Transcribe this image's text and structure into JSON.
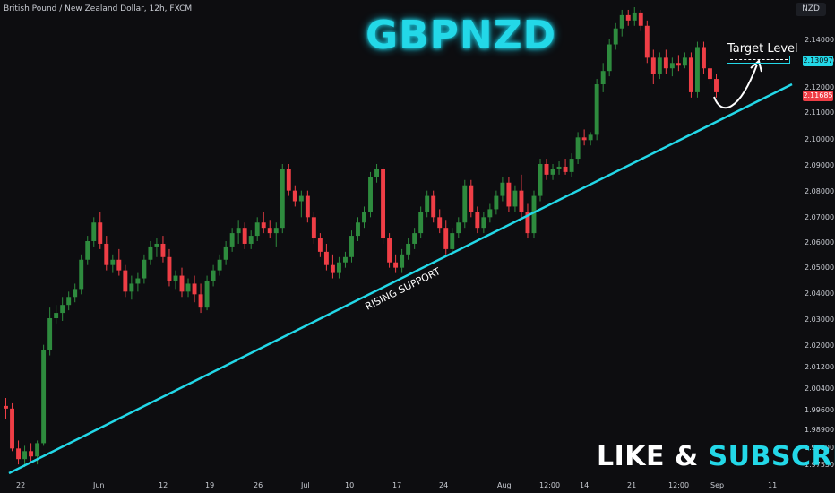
{
  "header": {
    "symbol_info": "British Pound / New Zealand Dollar, 12h, FXCM",
    "currency": "NZD"
  },
  "overlay": {
    "title": "GBPNZD",
    "support_label": "RISING SUPPORT",
    "target_label": "Target Level",
    "cta_main": "LIKE & ",
    "cta_accent": "SUBSCRIBE"
  },
  "price_badges": {
    "target": "2.13097",
    "last": "2.11685"
  },
  "colors": {
    "background": "#0d0d10",
    "up": "#2e8b3e",
    "down": "#ef3e46",
    "accent": "#23d8e8",
    "text": "#c9ccd3"
  },
  "chart_data": {
    "type": "candlestick",
    "title": "GBPNZD",
    "y_axis": {
      "position": "right",
      "ticks": [
        "2.14000",
        "2.13000",
        "2.12000",
        "2.11000",
        "2.10000",
        "2.09000",
        "2.08000",
        "2.07000",
        "2.06000",
        "2.05000",
        "2.04000",
        "2.03000",
        "2.02000",
        "2.01200",
        "2.00400",
        "1.99600",
        "1.98900",
        "1.98200",
        "1.97550"
      ],
      "range": [
        1.973,
        2.149
      ]
    },
    "x_axis": {
      "ticks": [
        "22",
        "Jun",
        "12",
        "19",
        "26",
        "Jul",
        "10",
        "17",
        "24",
        "Aug",
        "12:00",
        "14",
        "21",
        "12:00",
        "Sep",
        "11"
      ]
    },
    "candles": [
      {
        "o": 1.999,
        "h": 2.002,
        "l": 1.994,
        "c": 1.998
      },
      {
        "o": 1.998,
        "h": 2.0,
        "l": 1.982,
        "c": 1.983
      },
      {
        "o": 1.983,
        "h": 1.986,
        "l": 1.977,
        "c": 1.979
      },
      {
        "o": 1.979,
        "h": 1.984,
        "l": 1.976,
        "c": 1.982
      },
      {
        "o": 1.982,
        "h": 1.985,
        "l": 1.978,
        "c": 1.98
      },
      {
        "o": 1.98,
        "h": 1.986,
        "l": 1.977,
        "c": 1.985
      },
      {
        "o": 1.985,
        "h": 2.022,
        "l": 1.984,
        "c": 2.02
      },
      {
        "o": 2.02,
        "h": 2.036,
        "l": 2.018,
        "c": 2.032
      },
      {
        "o": 2.032,
        "h": 2.037,
        "l": 2.03,
        "c": 2.034
      },
      {
        "o": 2.034,
        "h": 2.04,
        "l": 2.031,
        "c": 2.037
      },
      {
        "o": 2.037,
        "h": 2.042,
        "l": 2.035,
        "c": 2.04
      },
      {
        "o": 2.04,
        "h": 2.045,
        "l": 2.038,
        "c": 2.043
      },
      {
        "o": 2.043,
        "h": 2.056,
        "l": 2.041,
        "c": 2.054
      },
      {
        "o": 2.054,
        "h": 2.063,
        "l": 2.052,
        "c": 2.061
      },
      {
        "o": 2.061,
        "h": 2.07,
        "l": 2.059,
        "c": 2.068
      },
      {
        "o": 2.068,
        "h": 2.072,
        "l": 2.058,
        "c": 2.06
      },
      {
        "o": 2.06,
        "h": 2.063,
        "l": 2.05,
        "c": 2.052
      },
      {
        "o": 2.052,
        "h": 2.056,
        "l": 2.049,
        "c": 2.054
      },
      {
        "o": 2.054,
        "h": 2.058,
        "l": 2.048,
        "c": 2.05
      },
      {
        "o": 2.05,
        "h": 2.052,
        "l": 2.04,
        "c": 2.042
      },
      {
        "o": 2.042,
        "h": 2.048,
        "l": 2.039,
        "c": 2.045
      },
      {
        "o": 2.045,
        "h": 2.049,
        "l": 2.042,
        "c": 2.047
      },
      {
        "o": 2.047,
        "h": 2.056,
        "l": 2.045,
        "c": 2.054
      },
      {
        "o": 2.054,
        "h": 2.061,
        "l": 2.052,
        "c": 2.059
      },
      {
        "o": 2.059,
        "h": 2.062,
        "l": 2.055,
        "c": 2.06
      },
      {
        "o": 2.06,
        "h": 2.063,
        "l": 2.053,
        "c": 2.055
      },
      {
        "o": 2.055,
        "h": 2.058,
        "l": 2.044,
        "c": 2.046
      },
      {
        "o": 2.046,
        "h": 2.05,
        "l": 2.043,
        "c": 2.048
      },
      {
        "o": 2.048,
        "h": 2.051,
        "l": 2.04,
        "c": 2.042
      },
      {
        "o": 2.042,
        "h": 2.047,
        "l": 2.04,
        "c": 2.045
      },
      {
        "o": 2.045,
        "h": 2.048,
        "l": 2.038,
        "c": 2.041
      },
      {
        "o": 2.041,
        "h": 2.045,
        "l": 2.034,
        "c": 2.036
      },
      {
        "o": 2.036,
        "h": 2.048,
        "l": 2.035,
        "c": 2.046
      },
      {
        "o": 2.046,
        "h": 2.052,
        "l": 2.044,
        "c": 2.05
      },
      {
        "o": 2.05,
        "h": 2.056,
        "l": 2.048,
        "c": 2.054
      },
      {
        "o": 2.054,
        "h": 2.061,
        "l": 2.052,
        "c": 2.059
      },
      {
        "o": 2.059,
        "h": 2.066,
        "l": 2.057,
        "c": 2.064
      },
      {
        "o": 2.064,
        "h": 2.069,
        "l": 2.06,
        "c": 2.066
      },
      {
        "o": 2.066,
        "h": 2.068,
        "l": 2.058,
        "c": 2.06
      },
      {
        "o": 2.06,
        "h": 2.065,
        "l": 2.058,
        "c": 2.063
      },
      {
        "o": 2.063,
        "h": 2.07,
        "l": 2.061,
        "c": 2.068
      },
      {
        "o": 2.068,
        "h": 2.072,
        "l": 2.064,
        "c": 2.066
      },
      {
        "o": 2.066,
        "h": 2.069,
        "l": 2.062,
        "c": 2.064
      },
      {
        "o": 2.064,
        "h": 2.068,
        "l": 2.059,
        "c": 2.066
      },
      {
        "o": 2.066,
        "h": 2.09,
        "l": 2.064,
        "c": 2.088
      },
      {
        "o": 2.088,
        "h": 2.09,
        "l": 2.078,
        "c": 2.08
      },
      {
        "o": 2.08,
        "h": 2.082,
        "l": 2.074,
        "c": 2.076
      },
      {
        "o": 2.076,
        "h": 2.08,
        "l": 2.07,
        "c": 2.078
      },
      {
        "o": 2.078,
        "h": 2.08,
        "l": 2.068,
        "c": 2.07
      },
      {
        "o": 2.07,
        "h": 2.072,
        "l": 2.06,
        "c": 2.062
      },
      {
        "o": 2.062,
        "h": 2.064,
        "l": 2.055,
        "c": 2.057
      },
      {
        "o": 2.057,
        "h": 2.06,
        "l": 2.05,
        "c": 2.052
      },
      {
        "o": 2.052,
        "h": 2.056,
        "l": 2.047,
        "c": 2.049
      },
      {
        "o": 2.049,
        "h": 2.055,
        "l": 2.047,
        "c": 2.053
      },
      {
        "o": 2.053,
        "h": 2.057,
        "l": 2.051,
        "c": 2.055
      },
      {
        "o": 2.055,
        "h": 2.065,
        "l": 2.053,
        "c": 2.063
      },
      {
        "o": 2.063,
        "h": 2.07,
        "l": 2.061,
        "c": 2.068
      },
      {
        "o": 2.068,
        "h": 2.074,
        "l": 2.066,
        "c": 2.072
      },
      {
        "o": 2.072,
        "h": 2.087,
        "l": 2.07,
        "c": 2.085
      },
      {
        "o": 2.085,
        "h": 2.09,
        "l": 2.083,
        "c": 2.088
      },
      {
        "o": 2.088,
        "h": 2.089,
        "l": 2.06,
        "c": 2.062
      },
      {
        "o": 2.062,
        "h": 2.064,
        "l": 2.051,
        "c": 2.053
      },
      {
        "o": 2.053,
        "h": 2.056,
        "l": 2.049,
        "c": 2.051
      },
      {
        "o": 2.051,
        "h": 2.058,
        "l": 2.049,
        "c": 2.056
      },
      {
        "o": 2.056,
        "h": 2.062,
        "l": 2.054,
        "c": 2.06
      },
      {
        "o": 2.06,
        "h": 2.066,
        "l": 2.058,
        "c": 2.064
      },
      {
        "o": 2.064,
        "h": 2.074,
        "l": 2.062,
        "c": 2.072
      },
      {
        "o": 2.072,
        "h": 2.08,
        "l": 2.07,
        "c": 2.078
      },
      {
        "o": 2.078,
        "h": 2.08,
        "l": 2.068,
        "c": 2.07
      },
      {
        "o": 2.07,
        "h": 2.073,
        "l": 2.064,
        "c": 2.066
      },
      {
        "o": 2.066,
        "h": 2.069,
        "l": 2.056,
        "c": 2.058
      },
      {
        "o": 2.058,
        "h": 2.066,
        "l": 2.056,
        "c": 2.064
      },
      {
        "o": 2.064,
        "h": 2.07,
        "l": 2.062,
        "c": 2.068
      },
      {
        "o": 2.068,
        "h": 2.084,
        "l": 2.066,
        "c": 2.082
      },
      {
        "o": 2.082,
        "h": 2.084,
        "l": 2.07,
        "c": 2.072
      },
      {
        "o": 2.072,
        "h": 2.074,
        "l": 2.064,
        "c": 2.066
      },
      {
        "o": 2.066,
        "h": 2.072,
        "l": 2.064,
        "c": 2.07
      },
      {
        "o": 2.07,
        "h": 2.075,
        "l": 2.068,
        "c": 2.073
      },
      {
        "o": 2.073,
        "h": 2.08,
        "l": 2.071,
        "c": 2.078
      },
      {
        "o": 2.078,
        "h": 2.085,
        "l": 2.076,
        "c": 2.083
      },
      {
        "o": 2.083,
        "h": 2.085,
        "l": 2.072,
        "c": 2.074
      },
      {
        "o": 2.074,
        "h": 2.082,
        "l": 2.072,
        "c": 2.08
      },
      {
        "o": 2.08,
        "h": 2.086,
        "l": 2.07,
        "c": 2.072
      },
      {
        "o": 2.072,
        "h": 2.075,
        "l": 2.062,
        "c": 2.064
      },
      {
        "o": 2.064,
        "h": 2.08,
        "l": 2.062,
        "c": 2.078
      },
      {
        "o": 2.078,
        "h": 2.092,
        "l": 2.076,
        "c": 2.09
      },
      {
        "o": 2.09,
        "h": 2.092,
        "l": 2.084,
        "c": 2.086
      },
      {
        "o": 2.086,
        "h": 2.09,
        "l": 2.084,
        "c": 2.088
      },
      {
        "o": 2.088,
        "h": 2.091,
        "l": 2.086,
        "c": 2.089
      },
      {
        "o": 2.089,
        "h": 2.092,
        "l": 2.086,
        "c": 2.087
      },
      {
        "o": 2.087,
        "h": 2.094,
        "l": 2.085,
        "c": 2.092
      },
      {
        "o": 2.092,
        "h": 2.102,
        "l": 2.09,
        "c": 2.1
      },
      {
        "o": 2.1,
        "h": 2.103,
        "l": 2.097,
        "c": 2.099
      },
      {
        "o": 2.099,
        "h": 2.102,
        "l": 2.097,
        "c": 2.101
      },
      {
        "o": 2.101,
        "h": 2.122,
        "l": 2.099,
        "c": 2.12
      },
      {
        "o": 2.12,
        "h": 2.128,
        "l": 2.117,
        "c": 2.125
      },
      {
        "o": 2.125,
        "h": 2.137,
        "l": 2.123,
        "c": 2.135
      },
      {
        "o": 2.135,
        "h": 2.143,
        "l": 2.133,
        "c": 2.141
      },
      {
        "o": 2.141,
        "h": 2.148,
        "l": 2.138,
        "c": 2.146
      },
      {
        "o": 2.146,
        "h": 2.148,
        "l": 2.142,
        "c": 2.144
      },
      {
        "o": 2.144,
        "h": 2.149,
        "l": 2.142,
        "c": 2.147
      },
      {
        "o": 2.147,
        "h": 2.148,
        "l": 2.14,
        "c": 2.142
      },
      {
        "o": 2.142,
        "h": 2.144,
        "l": 2.128,
        "c": 2.13
      },
      {
        "o": 2.13,
        "h": 2.133,
        "l": 2.12,
        "c": 2.124
      },
      {
        "o": 2.124,
        "h": 2.132,
        "l": 2.122,
        "c": 2.13
      },
      {
        "o": 2.13,
        "h": 2.133,
        "l": 2.124,
        "c": 2.126
      },
      {
        "o": 2.126,
        "h": 2.13,
        "l": 2.123,
        "c": 2.128
      },
      {
        "o": 2.128,
        "h": 2.131,
        "l": 2.125,
        "c": 2.127
      },
      {
        "o": 2.127,
        "h": 2.132,
        "l": 2.126,
        "c": 2.13
      },
      {
        "o": 2.13,
        "h": 2.132,
        "l": 2.115,
        "c": 2.117
      },
      {
        "o": 2.117,
        "h": 2.136,
        "l": 2.115,
        "c": 2.134
      },
      {
        "o": 2.134,
        "h": 2.136,
        "l": 2.124,
        "c": 2.126
      },
      {
        "o": 2.126,
        "h": 2.129,
        "l": 2.12,
        "c": 2.122
      },
      {
        "o": 2.122,
        "h": 2.124,
        "l": 2.115,
        "c": 2.117
      }
    ],
    "support_line": {
      "from": {
        "index": 0,
        "price": 1.974
      },
      "to": {
        "index": 123,
        "price": 2.121
      }
    },
    "target_level": 2.13097,
    "last_price": 2.11685
  }
}
